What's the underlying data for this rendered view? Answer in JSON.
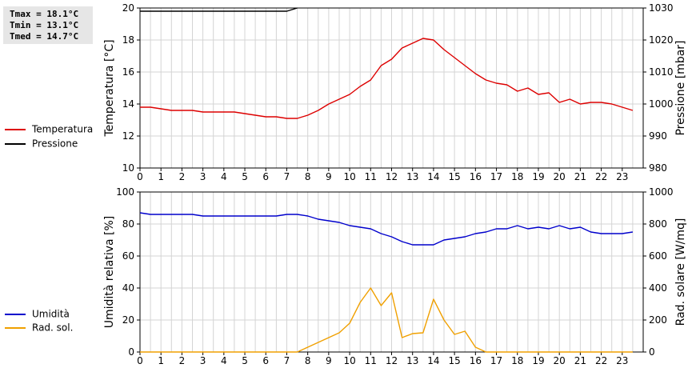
{
  "stats": {
    "tmax": "Tmax = 18.1°C",
    "tmin": "Tmin = 13.1°C",
    "tmed": "Tmed = 14.7°C"
  },
  "legend_top": [
    {
      "label": "Temperatura",
      "color": "#dd0000"
    },
    {
      "label": "Pressione",
      "color": "#000000"
    }
  ],
  "legend_bottom": [
    {
      "label": "Umidità",
      "color": "#0000cc"
    },
    {
      "label": "Rad. sol.",
      "color": "#f0a000"
    }
  ],
  "chart_data": [
    {
      "type": "line",
      "xlim": [
        0,
        24
      ],
      "x_ticks": [
        0,
        1,
        2,
        3,
        4,
        5,
        6,
        7,
        8,
        9,
        10,
        11,
        12,
        13,
        14,
        15,
        16,
        17,
        18,
        19,
        20,
        21,
        22,
        23
      ],
      "grid": true,
      "ylabel": "Temperatura [°C]",
      "ylim": [
        10,
        20
      ],
      "y_ticks": [
        10,
        12,
        14,
        16,
        18,
        20
      ],
      "y2label": "Pressione [mbar]",
      "y2lim": [
        980,
        1030
      ],
      "y2_ticks": [
        980,
        990,
        1000,
        1010,
        1020,
        1030
      ],
      "series": [
        {
          "name": "Temperatura",
          "axis": "left",
          "color": "#dd0000",
          "x": [
            0,
            0.5,
            1,
            1.5,
            2,
            2.5,
            3,
            3.5,
            4,
            4.5,
            5,
            5.5,
            6,
            6.5,
            7,
            7.5,
            8,
            8.5,
            9,
            9.5,
            10,
            10.5,
            11,
            11.5,
            12,
            12.5,
            13,
            13.5,
            14,
            14.5,
            15,
            15.5,
            16,
            16.5,
            17,
            17.5,
            18,
            18.5,
            19,
            19.5,
            20,
            20.5,
            21,
            21.5,
            22,
            22.5,
            23,
            23.5
          ],
          "values": [
            13.8,
            13.8,
            13.7,
            13.6,
            13.6,
            13.6,
            13.5,
            13.5,
            13.5,
            13.5,
            13.4,
            13.3,
            13.2,
            13.2,
            13.1,
            13.1,
            13.3,
            13.6,
            14.0,
            14.3,
            14.6,
            15.1,
            15.5,
            16.4,
            16.8,
            17.5,
            17.8,
            18.1,
            18.0,
            17.4,
            16.9,
            16.4,
            15.9,
            15.5,
            15.3,
            15.2,
            14.8,
            15.0,
            14.6,
            14.7,
            14.1,
            14.3,
            14.0,
            14.1,
            14.1,
            14.0,
            13.8,
            13.6
          ]
        },
        {
          "name": "Pressione",
          "axis": "right",
          "color": "#000000",
          "x": [
            0,
            0.5,
            1,
            1.5,
            2,
            2.5,
            3,
            3.5,
            4,
            4.5,
            5,
            5.5,
            6,
            6.5,
            7,
            7.5
          ],
          "values": [
            1029,
            1029,
            1029,
            1029,
            1029,
            1029,
            1029,
            1029,
            1029,
            1029,
            1029,
            1029,
            1029,
            1029,
            1029,
            1030
          ]
        }
      ]
    },
    {
      "type": "line",
      "xlim": [
        0,
        24
      ],
      "x_ticks": [
        0,
        1,
        2,
        3,
        4,
        5,
        6,
        7,
        8,
        9,
        10,
        11,
        12,
        13,
        14,
        15,
        16,
        17,
        18,
        19,
        20,
        21,
        22,
        23
      ],
      "grid": true,
      "ylabel": "Umidità relativa [%]",
      "ylim": [
        0,
        100
      ],
      "y_ticks": [
        0,
        20,
        40,
        60,
        80,
        100
      ],
      "y2label": "Rad. solare [W/mq]",
      "y2lim": [
        0,
        1000
      ],
      "y2_ticks": [
        0,
        200,
        400,
        600,
        800,
        1000
      ],
      "series": [
        {
          "name": "Umidità",
          "axis": "left",
          "color": "#0000cc",
          "x": [
            0,
            0.5,
            1,
            1.5,
            2,
            2.5,
            3,
            3.5,
            4,
            4.5,
            5,
            5.5,
            6,
            6.5,
            7,
            7.5,
            8,
            8.5,
            9,
            9.5,
            10,
            10.5,
            11,
            11.5,
            12,
            12.5,
            13,
            13.5,
            14,
            14.5,
            15,
            15.5,
            16,
            16.5,
            17,
            17.5,
            18,
            18.5,
            19,
            19.5,
            20,
            20.5,
            21,
            21.5,
            22,
            22.5,
            23,
            23.5
          ],
          "values": [
            87,
            86,
            86,
            86,
            86,
            86,
            85,
            85,
            85,
            85,
            85,
            85,
            85,
            85,
            86,
            86,
            85,
            83,
            82,
            81,
            79,
            78,
            77,
            74,
            72,
            69,
            67,
            67,
            67,
            70,
            71,
            72,
            74,
            75,
            77,
            77,
            79,
            77,
            78,
            77,
            79,
            77,
            78,
            75,
            74,
            74,
            74,
            75
          ]
        },
        {
          "name": "Rad. sol.",
          "axis": "right",
          "color": "#f0a000",
          "x": [
            0,
            1,
            2,
            3,
            4,
            5,
            6,
            7,
            7.5,
            8,
            8.5,
            9,
            9.5,
            10,
            10.5,
            11,
            11.5,
            12,
            12.5,
            13,
            13.5,
            14,
            14.5,
            15,
            15.5,
            16,
            16.5,
            17,
            18,
            19,
            20,
            21,
            22,
            23,
            23.5
          ],
          "values": [
            0,
            0,
            0,
            0,
            0,
            0,
            0,
            0,
            0,
            30,
            60,
            90,
            120,
            180,
            310,
            400,
            290,
            370,
            90,
            115,
            120,
            330,
            200,
            110,
            130,
            30,
            0,
            0,
            0,
            0,
            0,
            0,
            0,
            0,
            0
          ]
        }
      ]
    }
  ]
}
